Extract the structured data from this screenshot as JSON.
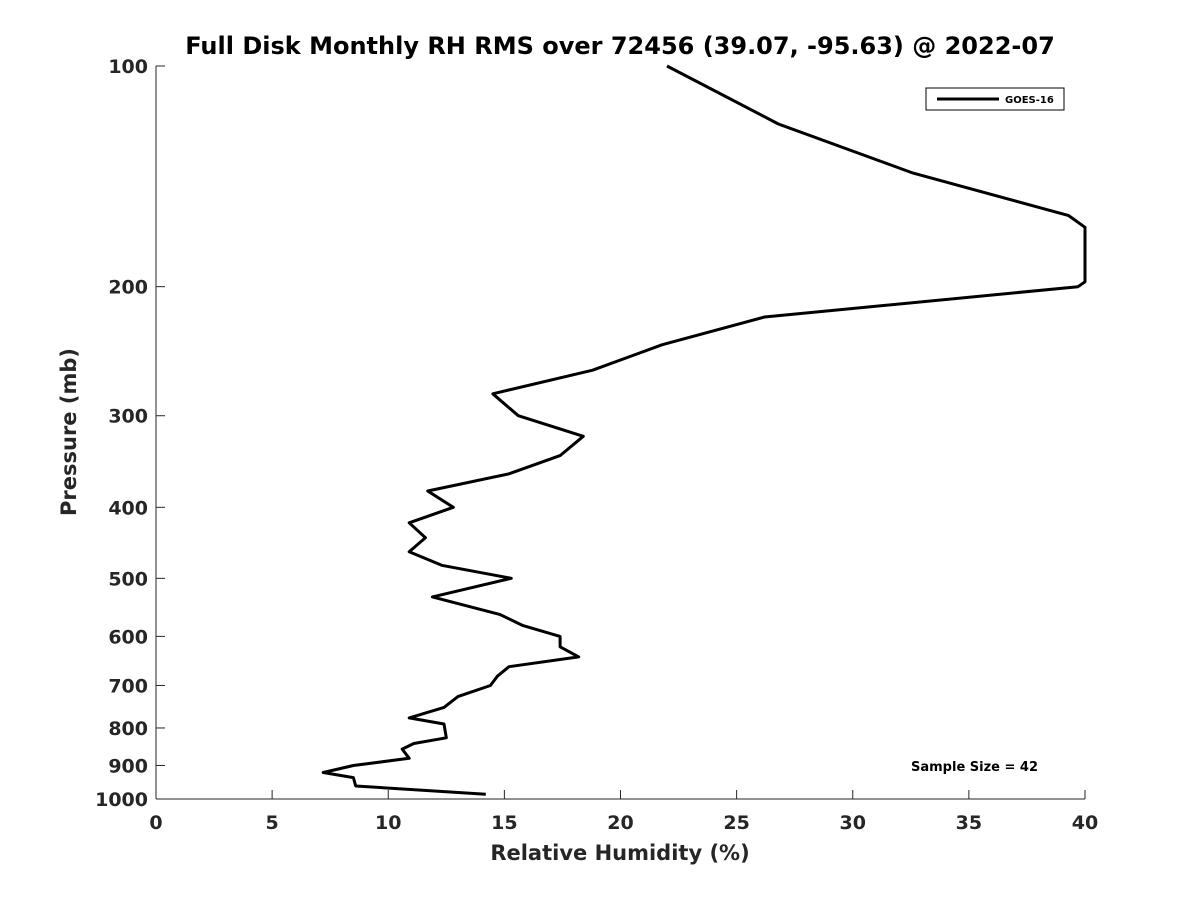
{
  "chart_data": {
    "type": "line",
    "title": "Full Disk Monthly RH RMS over 72456 (39.07, -95.63) @ 2022-07",
    "xlabel": "Relative Humidity (%)",
    "ylabel": "Pressure (mb)",
    "xlim": [
      0,
      40
    ],
    "ylim": [
      100,
      1000
    ],
    "y_scale": "log",
    "y_reversed": true,
    "x_ticks": [
      0,
      5,
      10,
      15,
      20,
      25,
      30,
      35,
      40
    ],
    "x_tick_labels": [
      "0",
      "5",
      "10",
      "15",
      "20",
      "25",
      "30",
      "35",
      "40"
    ],
    "y_ticks": [
      100,
      200,
      300,
      400,
      500,
      600,
      700,
      800,
      900,
      1000
    ],
    "y_tick_labels": [
      "100",
      "200",
      "300",
      "400",
      "500",
      "600",
      "700",
      "800",
      "900",
      "1000"
    ],
    "grid": false,
    "legend_position": "top-right",
    "annotation": "Sample Size = 42",
    "series": [
      {
        "name": "GOES-16",
        "color": "#000000",
        "points": [
          [
            22.0,
            100
          ],
          [
            26.8,
            120
          ],
          [
            32.6,
            140
          ],
          [
            39.3,
            160
          ],
          [
            40.0,
            166
          ],
          [
            40.0,
            197
          ],
          [
            39.7,
            200
          ],
          [
            26.2,
            220
          ],
          [
            21.8,
            240
          ],
          [
            18.8,
            260
          ],
          [
            14.5,
            280
          ],
          [
            15.6,
            300
          ],
          [
            18.4,
            320
          ],
          [
            17.4,
            340
          ],
          [
            15.2,
            360
          ],
          [
            11.7,
            380
          ],
          [
            12.8,
            400
          ],
          [
            10.9,
            420
          ],
          [
            11.6,
            440
          ],
          [
            10.9,
            460
          ],
          [
            12.3,
            480
          ],
          [
            15.3,
            500
          ],
          [
            11.9,
            530
          ],
          [
            14.8,
            560
          ],
          [
            15.8,
            580
          ],
          [
            17.4,
            600
          ],
          [
            17.4,
            620
          ],
          [
            18.2,
            640
          ],
          [
            15.2,
            660
          ],
          [
            14.7,
            680
          ],
          [
            14.4,
            700
          ],
          [
            13.0,
            725
          ],
          [
            12.4,
            750
          ],
          [
            10.9,
            775
          ],
          [
            12.4,
            790
          ],
          [
            12.5,
            825
          ],
          [
            11.1,
            840
          ],
          [
            10.6,
            855
          ],
          [
            10.9,
            880
          ],
          [
            8.5,
            900
          ],
          [
            7.2,
            920
          ],
          [
            8.5,
            935
          ],
          [
            8.6,
            960
          ],
          [
            14.2,
            985
          ]
        ]
      }
    ]
  }
}
